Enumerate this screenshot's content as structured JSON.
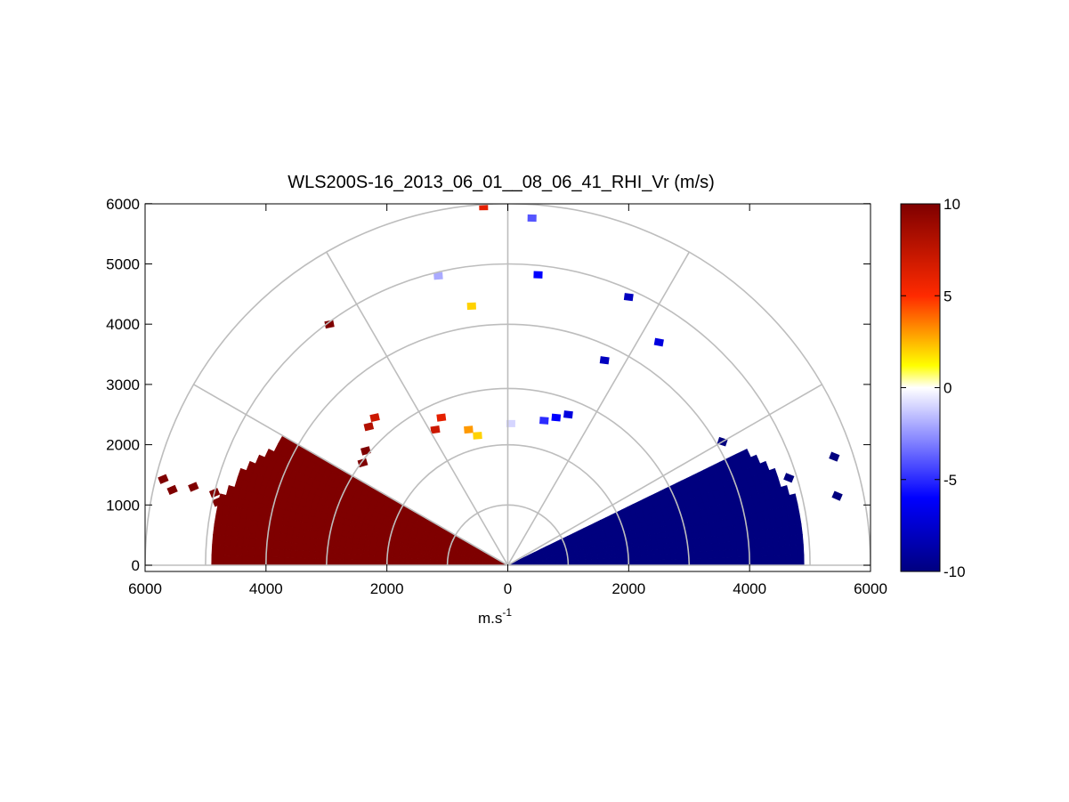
{
  "chart_data": {
    "type": "heatmap",
    "subtype": "polar-rhi-scan",
    "title": "WLS200S-16_2013_06_01__08_06_41_RHI_Vr (m/s)",
    "xlabel": "m.s",
    "xlabel_superscript": "-1",
    "ylabel": "",
    "x_ticks": [
      6000,
      4000,
      2000,
      0,
      2000,
      4000,
      6000
    ],
    "x_tick_labels": [
      "6000",
      "4000",
      "2000",
      "0",
      "2000",
      "4000",
      "6000"
    ],
    "y_ticks": [
      0,
      1000,
      2000,
      3000,
      4000,
      5000,
      6000
    ],
    "y_tick_labels": [
      "0",
      "1000",
      "2000",
      "3000",
      "4000",
      "5000",
      "6000"
    ],
    "xlim": [
      -6000,
      6000
    ],
    "ylim": [
      -100,
      6000
    ],
    "range_rings": [
      1000,
      2000,
      3000,
      4000,
      5000,
      6000
    ],
    "spokes_deg": [
      0,
      30,
      60,
      90,
      120,
      150,
      180
    ],
    "colorbar": {
      "min": -10,
      "max": 10,
      "ticks": [
        10,
        5,
        0,
        -5,
        -10
      ],
      "tick_labels": [
        "10",
        "5",
        "0",
        "-5",
        "-10"
      ],
      "colormap": [
        "#00007f",
        "#0000ff",
        "#ffffff",
        "#ffff00",
        "#ff0000",
        "#7f0000"
      ]
    },
    "dense_region": {
      "max_range_m": 4900,
      "left_elevation_max_deg": 30,
      "right_elevation_max_deg": 25,
      "left_velocity_mps": 10,
      "right_velocity_mps": -10
    },
    "scatter_cells": [
      {
        "x": -5700,
        "y": 1430,
        "v": 10
      },
      {
        "x": -5550,
        "y": 1250,
        "v": 10
      },
      {
        "x": -5200,
        "y": 1300,
        "v": 10
      },
      {
        "x": -4850,
        "y": 1200,
        "v": 10
      },
      {
        "x": -4800,
        "y": 1050,
        "v": 10
      },
      {
        "x": -4500,
        "y": 800,
        "v": 10
      },
      {
        "x": -4200,
        "y": 600,
        "v": 10
      },
      {
        "x": -4050,
        "y": 900,
        "v": 10
      },
      {
        "x": -3350,
        "y": 900,
        "v": 10
      },
      {
        "x": -3100,
        "y": 700,
        "v": 10
      },
      {
        "x": -2950,
        "y": 4000,
        "v": 10
      },
      {
        "x": -2400,
        "y": 1700,
        "v": 10
      },
      {
        "x": -2350,
        "y": 1900,
        "v": 10
      },
      {
        "x": -2300,
        "y": 2300,
        "v": 8
      },
      {
        "x": -2200,
        "y": 2450,
        "v": 7
      },
      {
        "x": -1200,
        "y": 2250,
        "v": 7
      },
      {
        "x": -1100,
        "y": 2450,
        "v": 6
      },
      {
        "x": -1150,
        "y": 4800,
        "v": -2
      },
      {
        "x": -600,
        "y": 4300,
        "v": 2
      },
      {
        "x": -400,
        "y": 5950,
        "v": 6
      },
      {
        "x": -650,
        "y": 2250,
        "v": 3
      },
      {
        "x": -500,
        "y": 2150,
        "v": 2
      },
      {
        "x": 50,
        "y": 2350,
        "v": -1
      },
      {
        "x": 400,
        "y": 5760,
        "v": -4
      },
      {
        "x": 500,
        "y": 4820,
        "v": -6
      },
      {
        "x": 600,
        "y": 2400,
        "v": -5
      },
      {
        "x": 800,
        "y": 2450,
        "v": -6
      },
      {
        "x": 1000,
        "y": 2500,
        "v": -7
      },
      {
        "x": 1600,
        "y": 3400,
        "v": -8
      },
      {
        "x": 2000,
        "y": 4450,
        "v": -8
      },
      {
        "x": 2500,
        "y": 3700,
        "v": -7
      },
      {
        "x": 2600,
        "y": 1050,
        "v": -10
      },
      {
        "x": 2850,
        "y": 900,
        "v": -10
      },
      {
        "x": 3100,
        "y": 750,
        "v": -10
      },
      {
        "x": 3300,
        "y": 600,
        "v": -10
      },
      {
        "x": 3550,
        "y": 2050,
        "v": -10
      },
      {
        "x": 3700,
        "y": 800,
        "v": -10
      },
      {
        "x": 4100,
        "y": 700,
        "v": -10
      },
      {
        "x": 4650,
        "y": 1450,
        "v": -10
      },
      {
        "x": 5400,
        "y": 1800,
        "v": -10
      },
      {
        "x": 5450,
        "y": 1150,
        "v": -10
      }
    ]
  }
}
